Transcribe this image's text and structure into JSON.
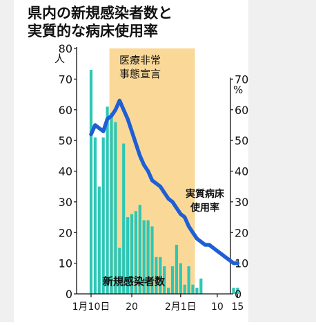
{
  "chart_data": {
    "type": "bar+line",
    "title_lines": [
      "県内の新規感染者数と",
      "実質的な病床使用率"
    ],
    "left_axis": {
      "unit": "人",
      "ylim": [
        0,
        80
      ],
      "ticks": [
        "0",
        "10",
        "20",
        "30",
        "40",
        "50",
        "60",
        "70",
        "80"
      ]
    },
    "right_axis": {
      "unit": "%",
      "ylim": [
        0,
        70
      ],
      "ticks": [
        "0",
        "10",
        "20",
        "30",
        "40",
        "50",
        "60",
        "70"
      ]
    },
    "x_tick_labels": [
      "1月10日",
      "20",
      "2月1日",
      "10",
      "15"
    ],
    "x_tick_days": [
      0,
      10,
      22,
      31,
      36
    ],
    "emergency_period": {
      "label_lines": [
        "医療非常",
        "事態宣言"
      ],
      "start_day": 4.5,
      "end_day": 25.5
    },
    "bars_series": {
      "name": "新規感染者数",
      "days": [
        0,
        1,
        2,
        3,
        4,
        5,
        6,
        7,
        8,
        9,
        10,
        11,
        12,
        13,
        14,
        15,
        16,
        17,
        18,
        19,
        20,
        21,
        22,
        23,
        24,
        25,
        26,
        27,
        28,
        29,
        30,
        31,
        32,
        33,
        34,
        35,
        36
      ],
      "values": [
        73,
        51,
        35,
        51,
        61,
        59,
        56,
        15,
        49,
        25,
        26,
        27,
        29,
        24,
        24,
        22,
        12,
        12,
        9,
        2,
        9,
        16,
        10,
        3,
        9,
        3,
        2,
        5,
        0,
        0,
        0,
        0,
        0,
        0,
        0,
        2,
        2
      ]
    },
    "line_series": {
      "name_lines": [
        "実質病床",
        "使用率"
      ],
      "days": [
        0,
        1,
        2,
        3,
        4,
        5,
        6,
        7,
        8,
        9,
        10,
        11,
        12,
        13,
        14,
        15,
        16,
        17,
        18,
        19,
        20,
        21,
        22,
        23,
        24,
        25,
        26,
        27,
        28,
        29,
        30,
        31,
        32,
        33,
        34,
        35,
        36
      ],
      "values": [
        52,
        55,
        54,
        53,
        57,
        58,
        60,
        63,
        60,
        57,
        53,
        49,
        45,
        42,
        40,
        37,
        36,
        35,
        33,
        31,
        30,
        28,
        26,
        25,
        22,
        20,
        18,
        17,
        16,
        16,
        15,
        14,
        13,
        12,
        11,
        10,
        10
      ]
    },
    "colors": {
      "bars": "#2ec6b6",
      "line": "#1f5fd6",
      "band": "#fad998",
      "axis": "#111111"
    }
  }
}
